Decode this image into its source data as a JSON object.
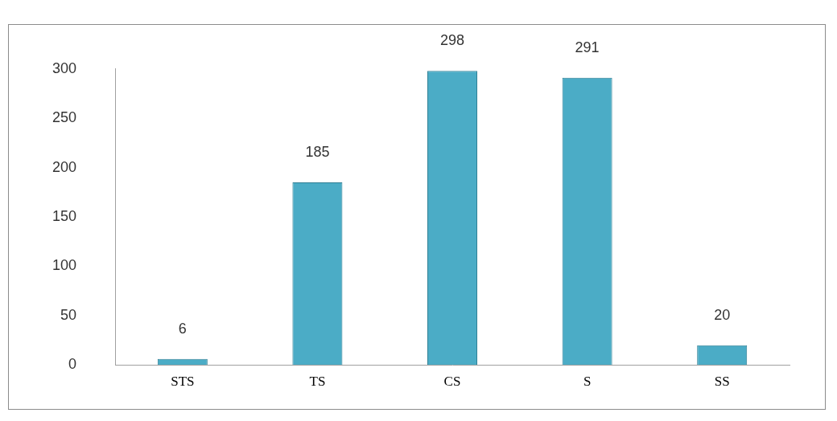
{
  "chart_data": {
    "type": "bar",
    "categories": [
      "STS",
      "TS",
      "CS",
      "S",
      "SS"
    ],
    "values": [
      6,
      185,
      298,
      291,
      20
    ],
    "color": "#4bacc6",
    "ylim": [
      0,
      300
    ],
    "yticks": [
      0,
      50,
      100,
      150,
      200,
      250,
      300
    ],
    "grid": false,
    "data_labels": true
  }
}
